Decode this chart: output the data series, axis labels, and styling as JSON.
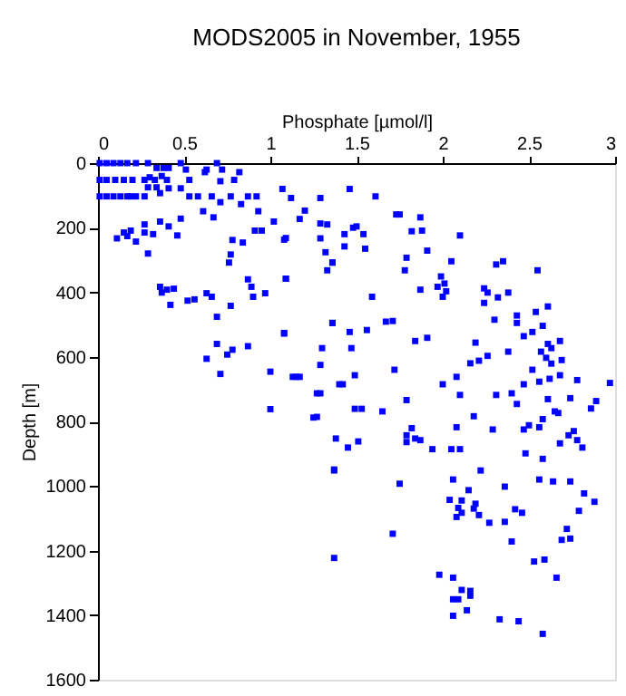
{
  "chart_data": {
    "type": "scatter",
    "title": "MODS2005 in November, 1955",
    "xlabel": "Phosphate [µmol/l]",
    "ylabel": "Depth [m]",
    "xlim": [
      0,
      3
    ],
    "xticks": [
      0,
      0.5,
      1,
      1.5,
      2,
      2.5,
      3
    ],
    "ylim": [
      1600,
      0
    ],
    "yticks": [
      0,
      200,
      400,
      600,
      800,
      1000,
      1200,
      1400,
      1600
    ],
    "grid": false,
    "marker": "square",
    "series": [
      {
        "color": "#0000ff",
        "x": [
          0.01,
          0.05,
          0.09,
          0.13,
          0.17,
          0.22,
          0.29,
          0.34,
          0.38,
          0.41,
          0.48,
          0.51,
          0.63,
          0.69,
          0.72,
          0.3,
          0.37,
          0.01,
          0.05,
          0.1,
          0.15,
          0.2,
          0.27,
          0.33,
          0.4,
          0.53,
          0.62,
          0.71,
          0.79,
          0.82,
          0.29,
          0.34,
          0.41,
          0.48,
          0.01,
          0.05,
          0.09,
          0.13,
          0.17,
          0.19,
          0.22,
          0.27,
          0.36,
          0.53,
          0.58,
          0.66,
          0.71,
          0.77,
          0.83,
          0.87,
          0.92,
          0.93,
          0.61,
          0.67,
          0.48,
          0.36,
          0.27,
          0.41,
          0.19,
          0.15,
          0.27,
          0.32,
          0.17,
          0.11,
          0.22,
          0.29,
          0.46,
          0.78,
          0.84,
          0.91,
          0.95,
          1.09,
          1.36,
          0.77,
          0.76,
          1.09,
          0.36,
          0.4,
          0.44,
          0.37,
          0.42,
          0.52,
          0.56,
          0.63,
          0.66,
          0.77,
          0.87,
          0.89,
          0.9,
          0.97,
          0.69,
          1.08,
          1.36,
          0.69,
          0.63,
          0.78,
          0.75,
          0.87,
          1.0,
          0.71,
          1.17,
          1.29,
          1.42,
          1.0,
          1.27,
          1.37,
          1.07,
          1.12,
          1.29,
          1.46,
          1.61,
          1.2,
          1.02,
          1.17,
          1.29,
          1.48,
          1.54,
          1.43,
          1.73,
          1.75,
          1.87,
          1.82,
          1.88,
          2.1,
          1.08,
          1.29,
          1.32,
          1.43,
          1.55,
          1.79,
          1.91,
          1.78,
          2.05,
          2.31,
          2.35,
          2.55,
          1.59,
          1.87,
          1.97,
          1.99,
          2.01,
          2.02,
          2.0,
          2.24,
          2.26,
          2.38,
          2.32,
          2.24,
          2.3,
          2.43,
          2.43,
          2.54,
          2.61,
          2.58,
          2.52,
          2.47,
          1.46,
          1.56,
          1.67,
          1.71,
          1.84,
          1.91,
          2.19,
          2.26,
          2.38,
          2.21,
          2.16,
          2.57,
          2.61,
          2.68,
          2.6,
          2.63,
          2.69,
          2.63,
          2.52,
          2.62,
          2.68,
          2.78,
          2.97,
          2.56,
          2.47,
          2.4,
          2.31,
          2.1,
          2.08,
          2.0,
          1.72,
          1.49,
          1.4,
          1.15,
          1.27,
          1.3,
          1.47,
          1.29,
          1.79,
          2.43,
          2.61,
          2.74,
          2.89,
          2.86,
          2.65,
          2.67,
          2.58,
          2.56,
          2.5,
          2.47,
          2.29,
          2.18,
          2.08,
          1.82,
          1.79,
          1.79,
          1.84,
          1.87,
          1.94,
          2.05,
          2.1,
          2.48,
          2.68,
          2.76,
          2.73,
          2.78,
          2.81,
          2.58,
          1.49,
          1.53,
          1.65,
          1.25,
          1.38,
          1.51,
          1.45,
          1.37,
          1.75,
          2.06,
          2.22,
          2.36,
          2.15,
          2.04,
          2.11,
          2.19,
          2.56,
          2.64,
          2.74,
          2.82,
          2.88,
          2.09,
          2.11,
          2.08,
          2.18,
          2.21,
          2.27,
          2.36,
          2.42,
          2.46,
          2.4,
          2.72,
          2.69,
          2.74,
          2.79,
          1.71,
          1.37,
          2.53,
          2.59,
          2.66,
          1.98,
          2.06,
          2.11,
          2.16,
          2.16,
          2.06,
          2.09,
          2.14,
          2.06,
          2.33,
          2.44,
          2.58,
          1.33,
          1.5,
          1.36,
          1.33,
          1.09,
          1.36,
          1.08,
          1.13
        ],
        "values": [
          0,
          0,
          0,
          0,
          0,
          0,
          0,
          15,
          15,
          15,
          0,
          20,
          20,
          0,
          20,
          44,
          40,
          52,
          52,
          52,
          52,
          52,
          52,
          52,
          52,
          52,
          28,
          56,
          52,
          28,
          75,
          75,
          78,
          78,
          103,
          103,
          103,
          103,
          103,
          103,
          103,
          103,
          93,
          103,
          103,
          103,
          121,
          103,
          127,
          103,
          103,
          149,
          149,
          168,
          172,
          181,
          190,
          196,
          209,
          215,
          215,
          220,
          226,
          233,
          243,
          280,
          224,
          238,
          246,
          209,
          209,
          232,
          308,
          283,
          308,
          358,
          383,
          392,
          389,
          401,
          439,
          426,
          422,
          403,
          414,
          442,
          360,
          383,
          414,
          403,
          476,
          526,
          495,
          560,
          606,
          578,
          593,
          567,
          646,
          653,
          662,
          713,
          685,
          762,
          786,
          949,
          80,
          108,
          108,
          80,
          103,
          147,
          181,
          173,
          187,
          200,
          220,
          220,
          159,
          159,
          168,
          211,
          209,
          224,
          237,
          233,
          276,
          258,
          265,
          293,
          271,
          332,
          304,
          314,
          304,
          332,
          414,
          392,
          383,
          351,
          373,
          397,
          414,
          388,
          401,
          401,
          416,
          433,
          485,
          472,
          495,
          461,
          444,
          504,
          523,
          536,
          523,
          517,
          491,
          489,
          551,
          541,
          556,
          597,
          584,
          612,
          620,
          584,
          560,
          551,
          603,
          573,
          610,
          621,
          640,
          668,
          657,
          672,
          681,
          677,
          685,
          713,
          718,
          718,
          662,
          685,
          640,
          657,
          685,
          662,
          713,
          573,
          573,
          625,
          734,
          746,
          731,
          728,
          737,
          760,
          769,
          774,
          793,
          818,
          812,
          825,
          825,
          784,
          818,
          821,
          843,
          864,
          853,
          858,
          886,
          886,
          886,
          899,
          868,
          830,
          843,
          858,
          881,
          916,
          761,
          761,
          769,
          788,
          853,
          862,
          881,
          952,
          993,
          980,
          952,
          1002,
          1013,
          1043,
          1045,
          1055,
          980,
          986,
          986,
          1023,
          1049,
          1068,
          1083,
          1096,
          1070,
          1090,
          1114,
          1111,
          1072,
          1083,
          1172,
          1133,
          1167,
          1163,
          1077,
          1148,
          1223,
          1234,
          1228,
          1284,
          1275,
          1284,
          1322,
          1325,
          1340,
          1351,
          1351,
          1385,
          1402,
          1413,
          1419,
          1458,
          190,
          196,
          308,
          332,
          358,
          495,
          528,
          662
        ]
      }
    ]
  }
}
